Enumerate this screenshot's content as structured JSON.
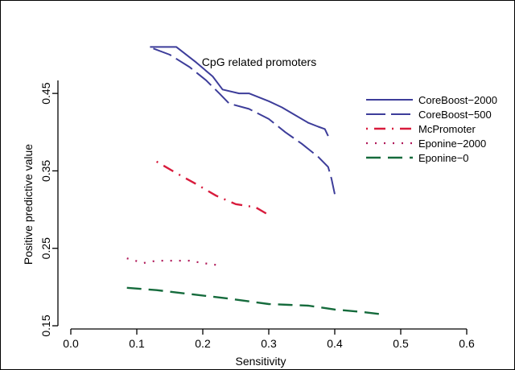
{
  "chart_data": {
    "type": "line",
    "title": "CpG related promoters",
    "xlabel": "Sensitivity",
    "ylabel": "Positive predictive value",
    "xlim": [
      0.0,
      0.6
    ],
    "ylim": [
      0.15,
      0.5
    ],
    "xticks": [
      "0.0",
      "0.1",
      "0.2",
      "0.3",
      "0.4",
      "0.5",
      "0.6"
    ],
    "yticks": [
      "0.15",
      "0.25",
      "0.35",
      "0.45"
    ],
    "legend_position": "top-right",
    "series": [
      {
        "name": "CoreBoost−2000",
        "color": "#3d3d9a",
        "dash": "solid",
        "x": [
          0.12,
          0.16,
          0.19,
          0.215,
          0.23,
          0.255,
          0.27,
          0.3,
          0.32,
          0.34,
          0.36,
          0.375,
          0.385,
          0.39
        ],
        "y": [
          0.51,
          0.51,
          0.49,
          0.472,
          0.455,
          0.45,
          0.45,
          0.44,
          0.432,
          0.422,
          0.412,
          0.407,
          0.404,
          0.395
        ]
      },
      {
        "name": "CoreBoost−500",
        "color": "#3d3d9a",
        "dash": "long",
        "x": [
          0.125,
          0.15,
          0.18,
          0.205,
          0.225,
          0.24,
          0.27,
          0.3,
          0.325,
          0.35,
          0.375,
          0.39,
          0.395,
          0.4
        ],
        "y": [
          0.508,
          0.5,
          0.484,
          0.467,
          0.45,
          0.437,
          0.43,
          0.417,
          0.4,
          0.385,
          0.368,
          0.355,
          0.34,
          0.32
        ]
      },
      {
        "name": "McPromoter",
        "color": "#d81b3c",
        "dash": "dashdot",
        "x": [
          0.13,
          0.16,
          0.19,
          0.22,
          0.25,
          0.28,
          0.3
        ],
        "y": [
          0.362,
          0.347,
          0.333,
          0.318,
          0.307,
          0.303,
          0.293
        ]
      },
      {
        "name": "Eponine−2000",
        "color": "#b01a5a",
        "dash": "dotted",
        "x": [
          0.085,
          0.11,
          0.13,
          0.16,
          0.18,
          0.2,
          0.225
        ],
        "y": [
          0.237,
          0.231,
          0.234,
          0.234,
          0.234,
          0.231,
          0.228
        ]
      },
      {
        "name": "Eponine−0",
        "color": "#156b3c",
        "dash": "dashed",
        "x": [
          0.085,
          0.13,
          0.18,
          0.24,
          0.3,
          0.33,
          0.36,
          0.4,
          0.44,
          0.47
        ],
        "y": [
          0.199,
          0.196,
          0.191,
          0.185,
          0.178,
          0.177,
          0.176,
          0.171,
          0.168,
          0.165
        ]
      }
    ]
  }
}
